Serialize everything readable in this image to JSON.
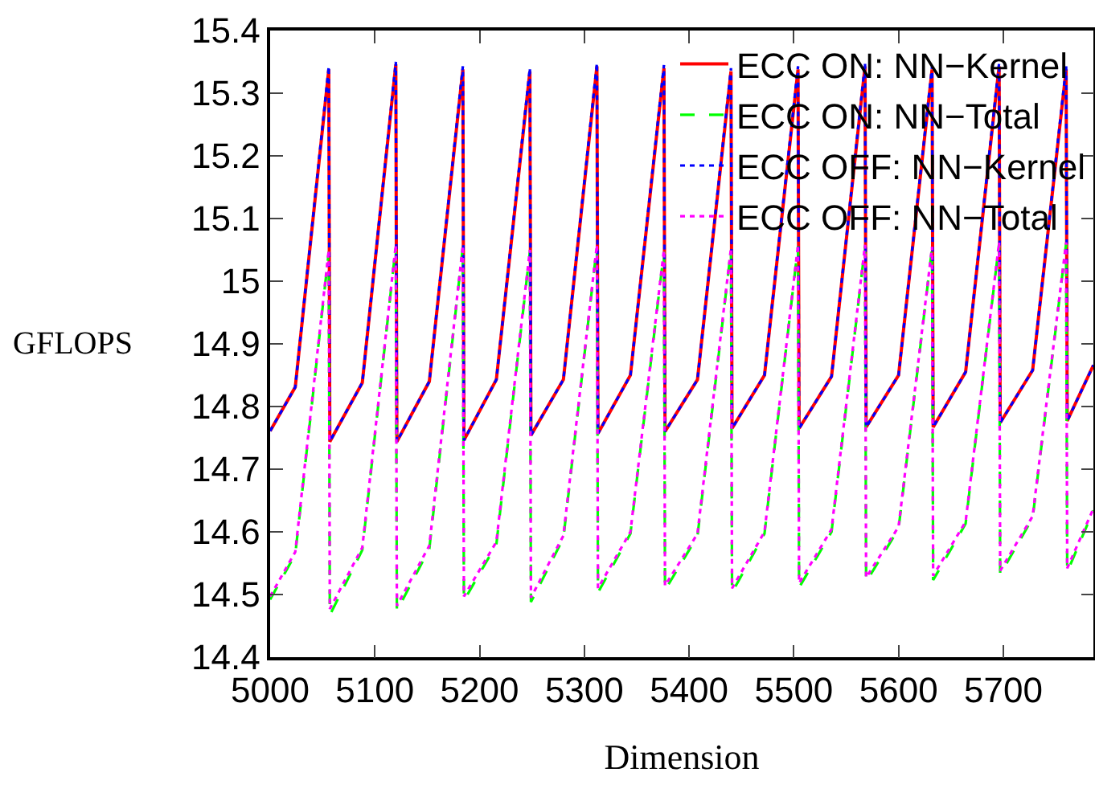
{
  "chart_data": {
    "type": "line",
    "xlabel": "Dimension",
    "ylabel": "GFLOPS",
    "xlim": [
      5000,
      5786
    ],
    "xticks": [
      5000,
      5100,
      5200,
      5300,
      5400,
      5500,
      5600,
      5700
    ],
    "ylim": [
      14.4,
      15.4
    ],
    "yticks": [
      14.4,
      14.5,
      14.6,
      14.7,
      14.8,
      14.9,
      15,
      15.1,
      15.2,
      15.3,
      15.4
    ],
    "grid": false,
    "legend": "top right",
    "marker": "none",
    "x": [
      5000,
      5024,
      5056,
      5057,
      5088,
      5120,
      5121,
      5152,
      5184,
      5185,
      5216,
      5248,
      5249,
      5280,
      5312,
      5313,
      5344,
      5376,
      5377,
      5408,
      5440,
      5441,
      5472,
      5504,
      5505,
      5536,
      5568,
      5569,
      5600,
      5632,
      5633,
      5664,
      5696,
      5697,
      5728,
      5760,
      5761,
      5786
    ],
    "series": [
      {
        "name": "ECC ON: NN−Kernel",
        "color": "#ff0000",
        "line_style": "solid",
        "values": [
          14.761,
          14.831,
          15.338,
          14.744,
          14.838,
          15.346,
          14.744,
          14.84,
          15.338,
          14.746,
          14.843,
          15.335,
          14.754,
          14.843,
          15.343,
          14.757,
          14.85,
          15.34,
          14.76,
          14.843,
          15.335,
          14.765,
          14.85,
          15.338,
          14.765,
          14.848,
          15.343,
          14.767,
          14.85,
          15.338,
          14.767,
          14.855,
          15.343,
          14.774,
          14.858,
          15.338,
          14.777,
          14.866
        ]
      },
      {
        "name": "ECC ON: NN−Total",
        "color": "#00ff00",
        "line_style": "dashed",
        "values": [
          14.492,
          14.564,
          15.047,
          14.467,
          14.571,
          15.056,
          14.474,
          14.573,
          15.055,
          14.49,
          14.58,
          15.047,
          14.488,
          14.59,
          15.056,
          14.503,
          14.597,
          15.047,
          14.507,
          14.593,
          15.05,
          14.503,
          14.597,
          15.056,
          14.511,
          14.6,
          15.056,
          14.52,
          14.605,
          15.053,
          14.523,
          14.613,
          15.06,
          14.532,
          14.622,
          15.06,
          14.536,
          14.634
        ]
      },
      {
        "name": "ECC OFF: NN−Kernel",
        "color": "#0000ff",
        "line_style": "dotted",
        "values": [
          14.761,
          14.831,
          15.343,
          14.744,
          14.838,
          15.35,
          14.744,
          14.84,
          15.343,
          14.746,
          14.843,
          15.34,
          14.754,
          14.843,
          15.348,
          14.757,
          14.85,
          15.345,
          14.76,
          14.843,
          15.34,
          14.765,
          14.85,
          15.343,
          14.765,
          14.848,
          15.348,
          14.767,
          14.85,
          15.343,
          14.767,
          14.855,
          15.348,
          14.774,
          14.858,
          15.343,
          14.777,
          14.866
        ]
      },
      {
        "name": "ECC OFF: NN−Total",
        "color": "#ff00ff",
        "line_style": "dotted",
        "values": [
          14.497,
          14.568,
          15.05,
          14.477,
          14.575,
          15.058,
          14.482,
          14.578,
          15.057,
          14.497,
          14.584,
          15.05,
          14.495,
          14.594,
          15.058,
          14.51,
          14.6,
          15.05,
          14.514,
          14.597,
          15.053,
          14.51,
          14.6,
          15.058,
          14.518,
          14.604,
          15.058,
          14.527,
          14.608,
          15.055,
          14.53,
          14.616,
          15.062,
          14.538,
          14.625,
          15.062,
          14.542,
          14.637
        ]
      }
    ]
  }
}
